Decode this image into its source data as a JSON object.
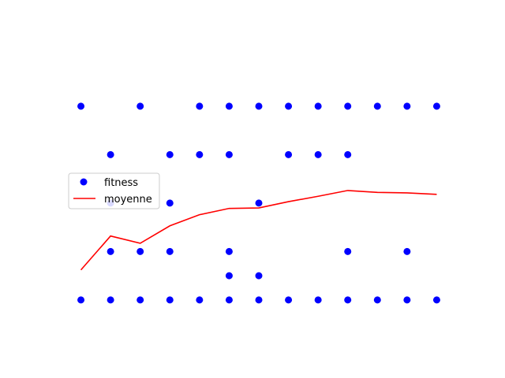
{
  "chart_data": {
    "type": "scatter",
    "title": "",
    "xlabel": "",
    "ylabel": "",
    "axes_visible": false,
    "grid": false,
    "legend_position": "center-left",
    "xlim": [
      -0.6,
      12.6
    ],
    "ylim": [
      -0.75,
      5.25
    ],
    "series": [
      {
        "name": "fitness",
        "kind": "points",
        "color": "#0000ff",
        "points": [
          [
            0,
            4
          ],
          [
            0,
            0
          ],
          [
            1,
            3
          ],
          [
            1,
            2
          ],
          [
            1,
            1
          ],
          [
            1,
            0
          ],
          [
            2,
            4
          ],
          [
            2,
            1
          ],
          [
            2,
            0
          ],
          [
            3,
            3
          ],
          [
            3,
            2
          ],
          [
            3,
            1
          ],
          [
            3,
            0
          ],
          [
            4,
            4
          ],
          [
            4,
            3
          ],
          [
            4,
            0
          ],
          [
            5,
            4
          ],
          [
            5,
            3
          ],
          [
            5,
            1
          ],
          [
            5,
            0.5
          ],
          [
            5,
            0
          ],
          [
            6,
            4
          ],
          [
            6,
            2
          ],
          [
            6,
            0.5
          ],
          [
            6,
            0
          ],
          [
            7,
            4
          ],
          [
            7,
            3
          ],
          [
            7,
            0
          ],
          [
            8,
            4
          ],
          [
            8,
            3
          ],
          [
            8,
            0
          ],
          [
            9,
            4
          ],
          [
            9,
            3
          ],
          [
            9,
            1
          ],
          [
            9,
            0
          ],
          [
            10,
            4
          ],
          [
            10,
            0
          ],
          [
            11,
            4
          ],
          [
            11,
            1
          ],
          [
            11,
            0
          ],
          [
            12,
            4
          ],
          [
            12,
            0
          ]
        ]
      },
      {
        "name": "moyenne",
        "kind": "line",
        "color": "#ff0000",
        "x": [
          0,
          1,
          2,
          3,
          4,
          5,
          6,
          7,
          8,
          9,
          10,
          11,
          12
        ],
        "y": [
          0.62,
          1.32,
          1.17,
          1.53,
          1.76,
          1.89,
          1.9,
          2.03,
          2.14,
          2.26,
          2.22,
          2.21,
          2.18
        ]
      }
    ]
  }
}
